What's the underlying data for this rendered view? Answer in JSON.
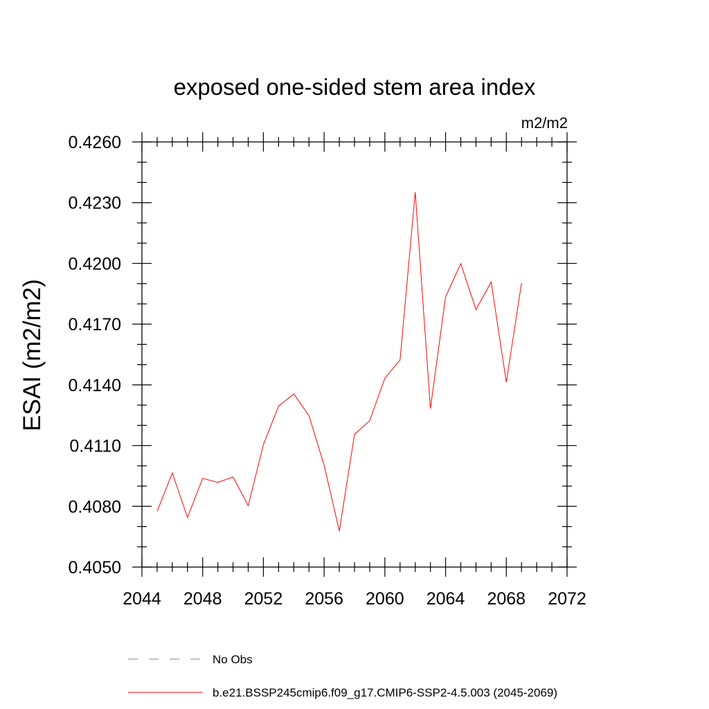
{
  "chart_data": {
    "type": "line",
    "title": "exposed one-sided stem area index",
    "units": "m2/m2",
    "ylabel": "ESAI  (m2/m2)",
    "xlabel": "",
    "xlim": [
      2044,
      2072
    ],
    "ylim": [
      0.405,
      0.426
    ],
    "xticks": [
      2044,
      2048,
      2052,
      2056,
      2060,
      2064,
      2068,
      2072
    ],
    "xtick_labels": [
      "2044",
      "2048",
      "2052",
      "2056",
      "2060",
      "2064",
      "2068",
      "2072"
    ],
    "yticks": [
      0.405,
      0.408,
      0.411,
      0.414,
      0.417,
      0.42,
      0.423,
      0.426
    ],
    "ytick_labels": [
      "0.4050",
      "0.4080",
      "0.4110",
      "0.4140",
      "0.4170",
      "0.4200",
      "0.4230",
      "0.4260"
    ],
    "series": [
      {
        "name": "b.e21.BSSP245cmip6.f09_g17.CMIP6-SSP2-4.5.003 (2045-2069)",
        "color": "#ff0000",
        "x": [
          2045,
          2046,
          2047,
          2048,
          2049,
          2050,
          2051,
          2052,
          2053,
          2054,
          2055,
          2056,
          2057,
          2058,
          2059,
          2060,
          2061,
          2062,
          2063,
          2064,
          2065,
          2066,
          2067,
          2068,
          2069
        ],
        "values": [
          0.40775,
          0.40965,
          0.40745,
          0.40938,
          0.40918,
          0.40945,
          0.40803,
          0.41105,
          0.41295,
          0.41355,
          0.41248,
          0.41003,
          0.40678,
          0.41155,
          0.41223,
          0.41433,
          0.41523,
          0.42352,
          0.41283,
          0.41835,
          0.41999,
          0.41772,
          0.41908,
          0.41413,
          0.41902
        ]
      }
    ],
    "legend": [
      {
        "label": "No Obs",
        "style": "dashed",
        "color": "#7b7bc8"
      },
      {
        "label": "b.e21.BSSP245cmip6.f09_g17.CMIP6-SSP2-4.5.003 (2045-2069)",
        "style": "solid",
        "color": "#ff0000"
      }
    ]
  }
}
